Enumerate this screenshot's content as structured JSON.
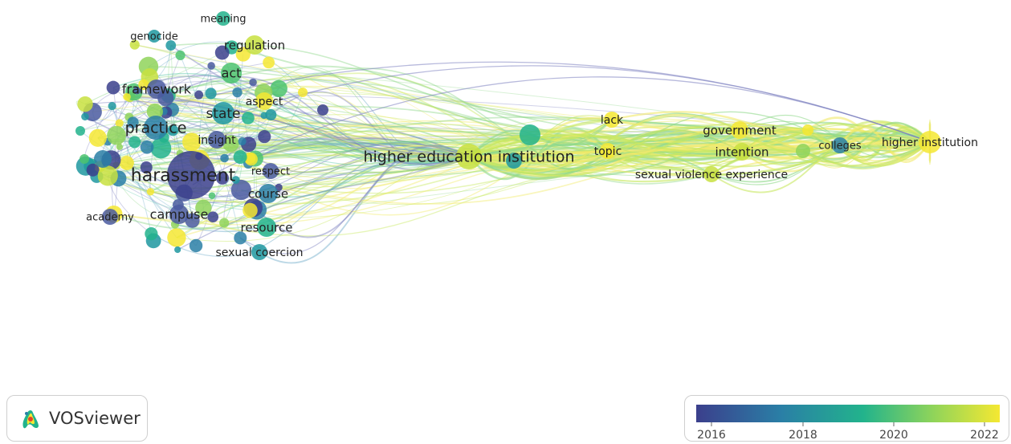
{
  "app": {
    "logo_text": "VOSviewer",
    "logo_icon": "vosviewer-logo-icon"
  },
  "color_scale": {
    "ticks": [
      "2016",
      "2018",
      "2020",
      "2022"
    ],
    "gradient": [
      "#3b3f8c",
      "#2a7fa6",
      "#22b38c",
      "#8fd45a",
      "#f5e832"
    ]
  },
  "keywords": [
    "meaning",
    "genocide",
    "regulation",
    "act",
    "framework",
    "aspect",
    "state",
    "practice",
    "insight",
    "harassment",
    "respect",
    "course",
    "campuse",
    "academy",
    "resource",
    "sexual coercion",
    "higher education institution",
    "lack",
    "topic",
    "government",
    "intention",
    "sexual violence experience",
    "colleges",
    "higher institution"
  ]
}
